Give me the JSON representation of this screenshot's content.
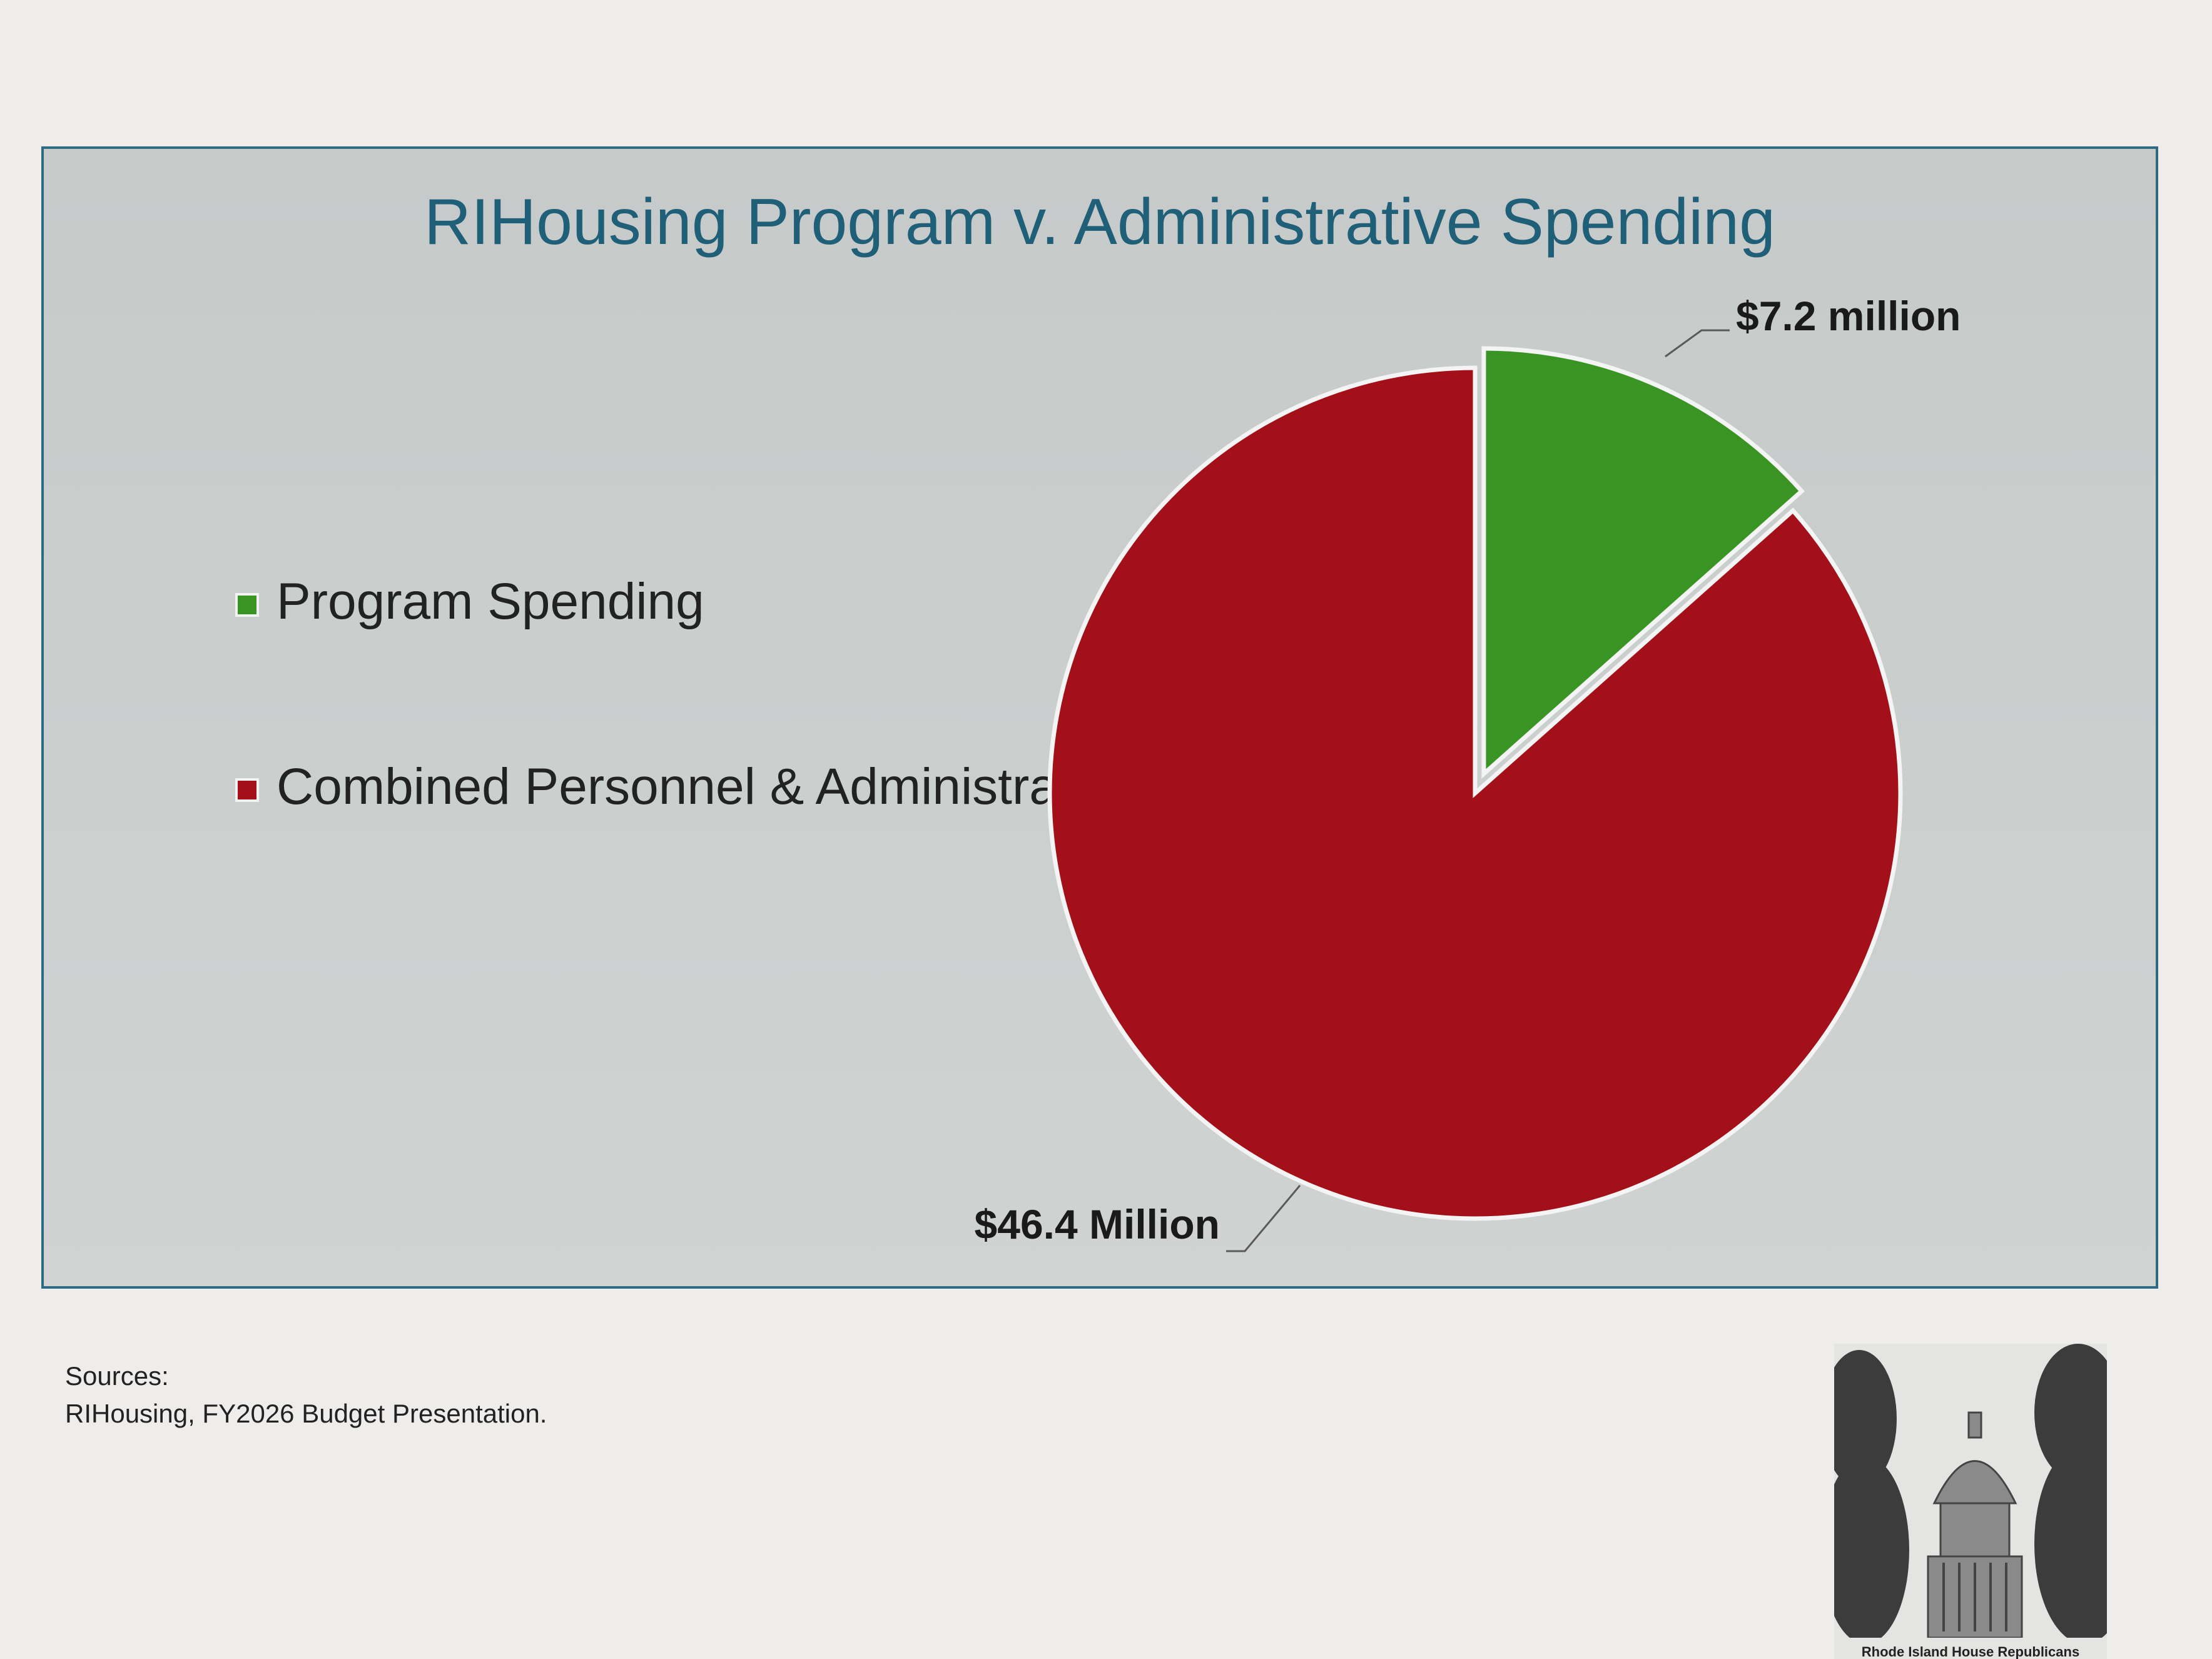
{
  "colors": {
    "program": "#3a9424",
    "admin": "#a3101a",
    "label_line": "#5a5a5a"
  },
  "sources": {
    "heading": "Sources:",
    "text": "RIHousing, FY2026 Budget Presentation."
  },
  "logo": {
    "text": "Rhode Island House Republicans"
  },
  "chart_data": {
    "type": "pie",
    "title": "RIHousing Program v. Administrative Spending",
    "units": "million USD",
    "legend_position": "left",
    "slices": [
      {
        "name": "Program Spending",
        "value": 7.2,
        "label": "$7.2 million",
        "color": "#3a9424",
        "exploded": true
      },
      {
        "name": "Combined Personnel & Administrative Spending",
        "value": 46.4,
        "label": "$46.4 Million",
        "color": "#a3101a",
        "exploded": false
      }
    ]
  }
}
